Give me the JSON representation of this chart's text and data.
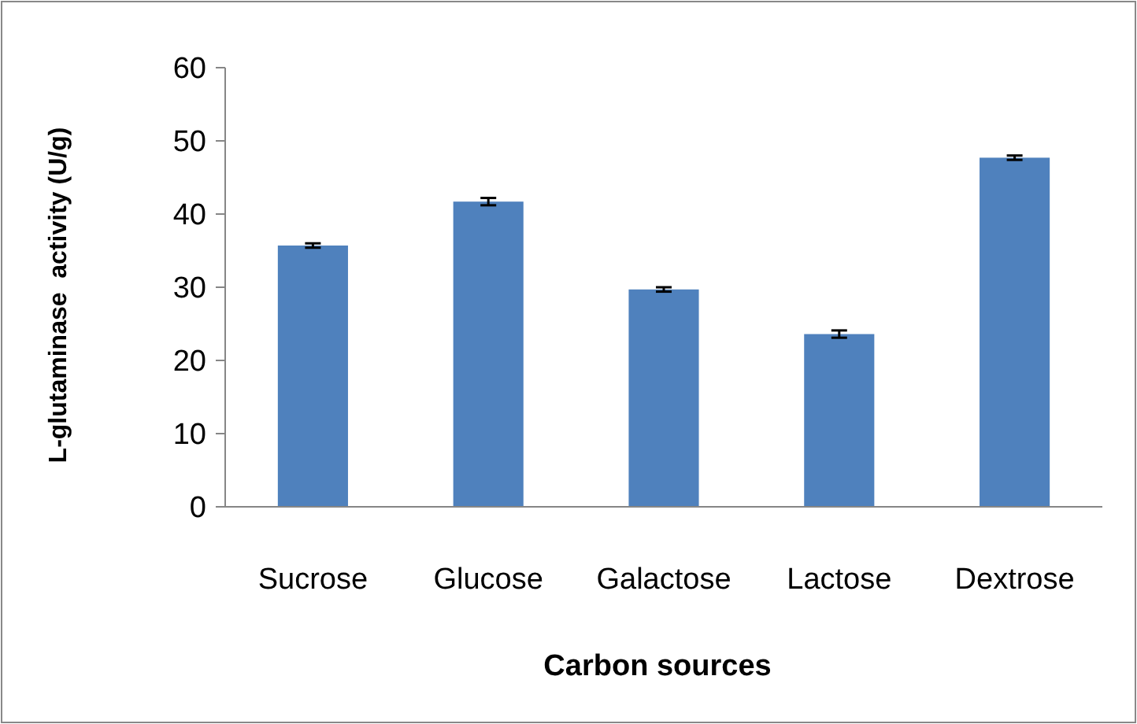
{
  "chart_data": {
    "type": "bar",
    "xlabel": "Carbon sources",
    "ylabel": "L-glutaminase  activity (U/g)",
    "categories": [
      "Sucrose",
      "Glucose",
      "Galactose",
      "Lactose",
      "Dextrose"
    ],
    "values": [
      35.7,
      41.7,
      29.7,
      23.6,
      47.7
    ],
    "errors": [
      0.3,
      0.5,
      0.3,
      0.5,
      0.3
    ],
    "color": "#4f81bd",
    "ylim": [
      0,
      60
    ],
    "yticks": [
      0,
      10,
      20,
      30,
      40,
      50,
      60
    ],
    "grid": false
  }
}
